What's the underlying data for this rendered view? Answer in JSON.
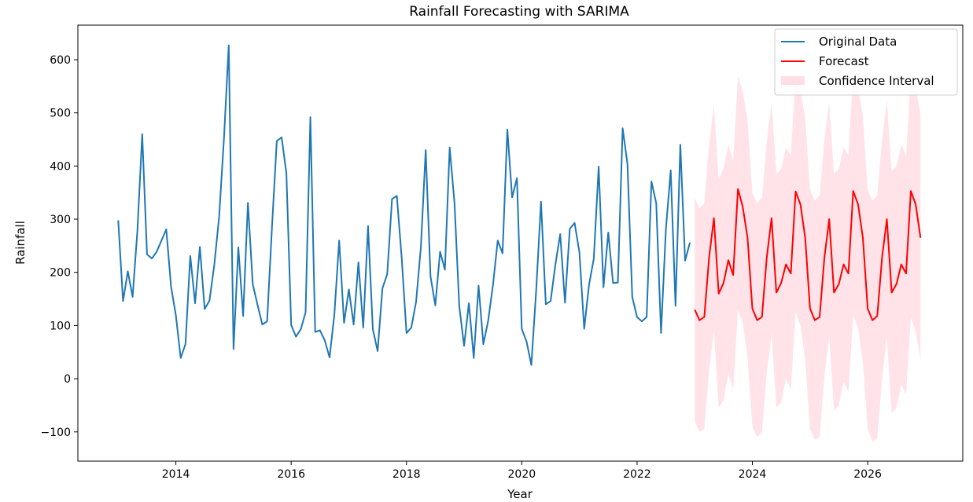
{
  "chart_data": {
    "type": "line",
    "title": "Rainfall Forecasting with SARIMA",
    "xlabel": "Year",
    "ylabel": "Rainfall",
    "xlim": [
      2012.3,
      2027.65
    ],
    "ylim": [
      -155,
      665
    ],
    "x_ticks": [
      2014,
      2016,
      2018,
      2020,
      2022,
      2024,
      2026
    ],
    "y_ticks": [
      -100,
      0,
      100,
      200,
      300,
      400,
      500,
      600
    ],
    "y_tick_labels": [
      "−100",
      "0",
      "100",
      "200",
      "300",
      "400",
      "500",
      "600"
    ],
    "legend_position": "top-right",
    "grid": false,
    "series": [
      {
        "name": "Original Data",
        "color": "#1f77b4",
        "start": 2013.0,
        "step_months": 1,
        "values": [
          298,
          146,
          202,
          154,
          279,
          460,
          234,
          226,
          239,
          260,
          281,
          173,
          119,
          39,
          65,
          231,
          142,
          248,
          131,
          147,
          215,
          305,
          451,
          627,
          56,
          247,
          118,
          331,
          178,
          139,
          102,
          108,
          283,
          447,
          454,
          387,
          101,
          79,
          93,
          125,
          492,
          88,
          91,
          72,
          40,
          121,
          260,
          105,
          168,
          102,
          219,
          96,
          287,
          93,
          52,
          170,
          197,
          338,
          344,
          229,
          86,
          96,
          145,
          248,
          430,
          193,
          138,
          239,
          205,
          435,
          331,
          136,
          62,
          142,
          39,
          175,
          65,
          109,
          176,
          260,
          236,
          469,
          341,
          377,
          94,
          70,
          26,
          167,
          333,
          140,
          146,
          215,
          272,
          143,
          282,
          293,
          238,
          94,
          176,
          226,
          399,
          172,
          275,
          180,
          181,
          471,
          404,
          154,
          116,
          108,
          116,
          371,
          330,
          86,
          282,
          392,
          137,
          440,
          222,
          256
        ]
      },
      {
        "name": "Forecast",
        "color": "#ff0000",
        "start": 2023.0,
        "step_months": 1,
        "values": [
          130,
          110,
          116,
          228,
          302,
          160,
          180,
          223,
          195,
          357,
          323,
          265,
          132,
          110,
          116,
          228,
          302,
          162,
          180,
          215,
          198,
          352,
          328,
          265,
          132,
          110,
          116,
          228,
          300,
          162,
          178,
          215,
          198,
          353,
          328,
          265,
          132,
          110,
          118,
          228,
          300,
          162,
          178,
          215,
          198,
          353,
          328,
          265
        ]
      },
      {
        "name": "Confidence Interval",
        "color": "#ffc0cb",
        "start": 2023.0,
        "step_months": 1,
        "lower": [
          -80,
          -100,
          -95,
          15,
          90,
          -55,
          -40,
          10,
          -20,
          130,
          105,
          40,
          -90,
          -110,
          -100,
          10,
          85,
          -55,
          -45,
          0,
          -20,
          125,
          100,
          35,
          -95,
          -115,
          -110,
          5,
          80,
          -60,
          -50,
          -5,
          -25,
          120,
          95,
          30,
          -95,
          -118,
          -112,
          0,
          78,
          -65,
          -55,
          -10,
          -30,
          115,
          90,
          35
        ],
        "upper": [
          340,
          320,
          330,
          440,
          515,
          375,
          395,
          440,
          410,
          570,
          540,
          485,
          350,
          330,
          340,
          445,
          520,
          385,
          395,
          435,
          420,
          570,
          545,
          490,
          355,
          335,
          345,
          450,
          520,
          385,
          395,
          435,
          420,
          575,
          550,
          495,
          355,
          335,
          345,
          450,
          525,
          390,
          400,
          440,
          420,
          570,
          550,
          495
        ]
      }
    ]
  }
}
